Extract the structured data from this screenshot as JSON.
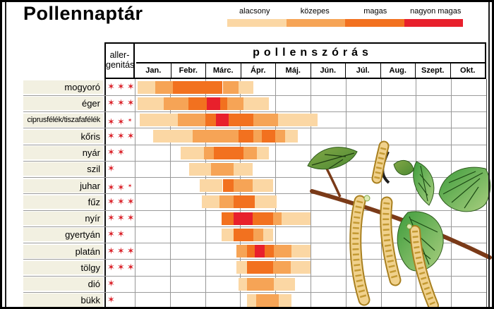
{
  "title": "Pollennaptár",
  "legend": {
    "items": [
      {
        "label": "alacsony",
        "color": "#FBD7A4"
      },
      {
        "label": "közepes",
        "color": "#F6A456"
      },
      {
        "label": "magas",
        "color": "#F2711F"
      },
      {
        "label": "nagyon magas",
        "color": "#E8202C"
      }
    ]
  },
  "table": {
    "allergenicity_header_line1": "aller-",
    "allergenicity_header_line2": "genitás",
    "pollen_header": "pollenszórás",
    "months": [
      "Jan.",
      "Febr.",
      "Márc.",
      "Ápr.",
      "Máj.",
      "Jún.",
      "Júl.",
      "Aug.",
      "Szept.",
      "Okt."
    ]
  },
  "chart_data": {
    "type": "heatmap",
    "title": "Pollennaptár",
    "x_categories": [
      "Jan.",
      "Febr.",
      "Márc.",
      "Ápr.",
      "Máj.",
      "Jún.",
      "Júl.",
      "Aug.",
      "Szept.",
      "Okt."
    ],
    "y_categories": [
      "mogyoró",
      "éger",
      "ciprusfélék/tiszafafélék",
      "kőris",
      "nyár",
      "szil",
      "juhar",
      "fűz",
      "nyír",
      "gyertyán",
      "platán",
      "tölgy",
      "dió",
      "bükk"
    ],
    "intensity_levels": [
      "alacsony",
      "közepes",
      "magas",
      "nagyon magas"
    ],
    "level_colors": [
      "#FBD7A4",
      "#F6A456",
      "#F2711F",
      "#E8202C"
    ],
    "segment_format": "[start_month, end_month, intensity_level_1_to_4], 0 = start of January",
    "series": [
      {
        "name": "mogyoró",
        "allergenicity": 3,
        "segments": [
          [
            0.08,
            0.58,
            1
          ],
          [
            0.58,
            1.08,
            2
          ],
          [
            1.08,
            2.5,
            3
          ],
          [
            2.5,
            2.95,
            2
          ],
          [
            2.95,
            3.38,
            1
          ]
        ]
      },
      {
        "name": "éger",
        "allergenicity": 3,
        "segments": [
          [
            0.08,
            0.82,
            1
          ],
          [
            0.82,
            1.53,
            2
          ],
          [
            1.53,
            2.04,
            3
          ],
          [
            2.04,
            2.43,
            4
          ],
          [
            2.43,
            2.64,
            3
          ],
          [
            2.64,
            3.1,
            2
          ],
          [
            3.1,
            3.82,
            1
          ]
        ]
      },
      {
        "name": "ciprusfélék/tiszafafélék",
        "allergenicity": 2.5,
        "segments": [
          [
            0.14,
            1.23,
            1
          ],
          [
            1.23,
            2.0,
            2
          ],
          [
            2.0,
            2.3,
            3
          ],
          [
            2.3,
            2.67,
            4
          ],
          [
            2.67,
            3.38,
            3
          ],
          [
            3.38,
            4.07,
            2
          ],
          [
            4.07,
            5.2,
            1
          ]
        ]
      },
      {
        "name": "kőris",
        "allergenicity": 3,
        "segments": [
          [
            0.52,
            1.65,
            1
          ],
          [
            1.65,
            2.95,
            2
          ],
          [
            2.95,
            3.38,
            3
          ],
          [
            3.38,
            3.62,
            2
          ],
          [
            3.62,
            4.0,
            3
          ],
          [
            4.0,
            4.27,
            2
          ],
          [
            4.27,
            4.64,
            1
          ]
        ]
      },
      {
        "name": "nyár",
        "allergenicity": 2,
        "segments": [
          [
            1.3,
            1.96,
            1
          ],
          [
            1.96,
            2.24,
            2
          ],
          [
            2.24,
            3.1,
            3
          ],
          [
            3.1,
            3.48,
            2
          ],
          [
            3.48,
            3.82,
            1
          ]
        ]
      },
      {
        "name": "szil",
        "allergenicity": 1,
        "segments": [
          [
            1.55,
            2.16,
            1
          ],
          [
            2.16,
            2.81,
            2
          ],
          [
            2.81,
            3.36,
            1
          ]
        ]
      },
      {
        "name": "juhar",
        "allergenicity": 2.5,
        "segments": [
          [
            1.84,
            2.5,
            1
          ],
          [
            2.5,
            2.81,
            3
          ],
          [
            2.81,
            3.36,
            2
          ],
          [
            3.36,
            3.93,
            1
          ]
        ]
      },
      {
        "name": "fűz",
        "allergenicity": 3,
        "segments": [
          [
            1.9,
            2.4,
            1
          ],
          [
            2.4,
            2.81,
            2
          ],
          [
            2.81,
            3.42,
            3
          ],
          [
            3.42,
            4.03,
            1
          ]
        ]
      },
      {
        "name": "nyír",
        "allergenicity": 3,
        "segments": [
          [
            2.46,
            2.81,
            3
          ],
          [
            2.81,
            3.36,
            4
          ],
          [
            3.36,
            3.93,
            3
          ],
          [
            3.93,
            4.17,
            2
          ],
          [
            4.17,
            5.0,
            1
          ]
        ]
      },
      {
        "name": "gyertyán",
        "allergenicity": 2,
        "segments": [
          [
            2.46,
            2.81,
            1
          ],
          [
            2.81,
            3.38,
            3
          ],
          [
            3.38,
            3.66,
            2
          ],
          [
            3.66,
            3.93,
            1
          ]
        ]
      },
      {
        "name": "platán",
        "allergenicity": 3,
        "segments": [
          [
            2.9,
            3.2,
            2
          ],
          [
            3.2,
            3.42,
            3
          ],
          [
            3.42,
            3.7,
            4
          ],
          [
            3.7,
            3.95,
            3
          ],
          [
            3.95,
            4.45,
            2
          ],
          [
            4.45,
            5.0,
            1
          ]
        ]
      },
      {
        "name": "tölgy",
        "allergenicity": 3,
        "segments": [
          [
            2.9,
            3.2,
            1
          ],
          [
            3.2,
            3.94,
            3
          ],
          [
            3.94,
            4.44,
            2
          ],
          [
            4.44,
            5.0,
            1
          ]
        ]
      },
      {
        "name": "dió",
        "allergenicity": 1,
        "segments": [
          [
            2.95,
            3.2,
            1
          ],
          [
            3.2,
            3.95,
            2
          ],
          [
            3.95,
            4.55,
            1
          ]
        ]
      },
      {
        "name": "bükk",
        "allergenicity": 1,
        "segments": [
          [
            3.2,
            3.45,
            1
          ],
          [
            3.45,
            4.1,
            2
          ],
          [
            4.1,
            4.45,
            1
          ]
        ]
      }
    ]
  },
  "illustration": {
    "name": "birch-branch-with-catkins"
  }
}
